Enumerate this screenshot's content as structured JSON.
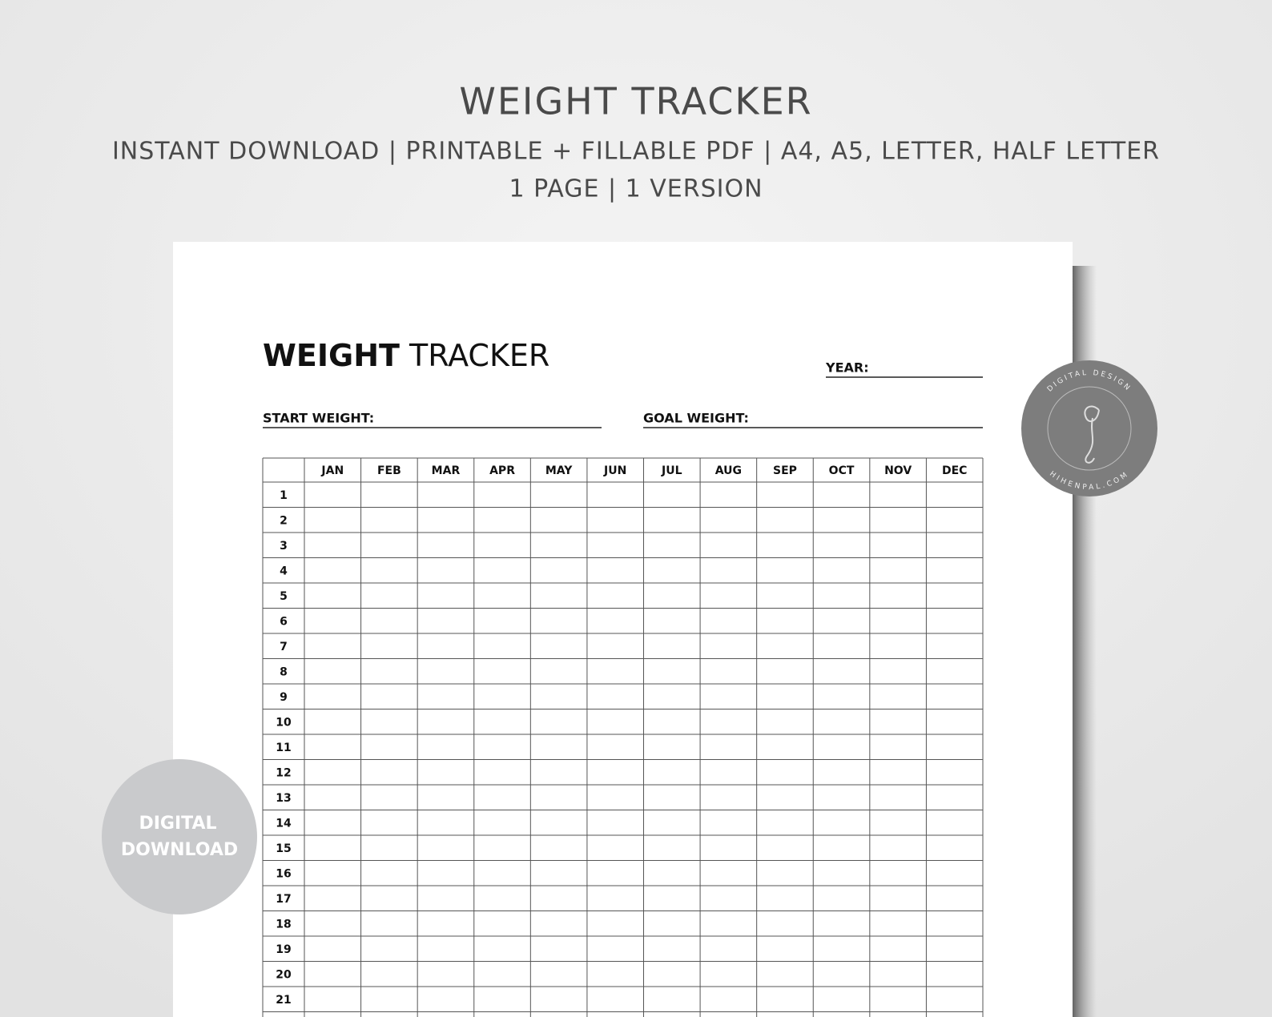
{
  "header": {
    "title": "WEIGHT TRACKER",
    "subtitle": "INSTANT DOWNLOAD | PRINTABLE + FILLABLE PDF | A4, A5, LETTER, HALF LETTER",
    "details": "1 PAGE | 1 VERSION"
  },
  "sheet": {
    "title_bold": "WEIGHT",
    "title_light": "TRACKER",
    "year_label": "YEAR:",
    "start_label": "START WEIGHT:",
    "goal_label": "GOAL WEIGHT:",
    "table": {
      "months": [
        "JAN",
        "FEB",
        "MAR",
        "APR",
        "MAY",
        "JUN",
        "JUL",
        "AUG",
        "SEP",
        "OCT",
        "NOV",
        "DEC"
      ],
      "rows": [
        1,
        2,
        3,
        4,
        5,
        6,
        7,
        8,
        9,
        10,
        11,
        12,
        13,
        14,
        15,
        16,
        17,
        18,
        19,
        20,
        21
      ]
    }
  },
  "badge": {
    "line1": "DIGITAL",
    "line2": "DOWNLOAD"
  },
  "logo": {
    "top": "DIGITAL DESIGN",
    "bottom": "HIHENPAL.COM"
  }
}
